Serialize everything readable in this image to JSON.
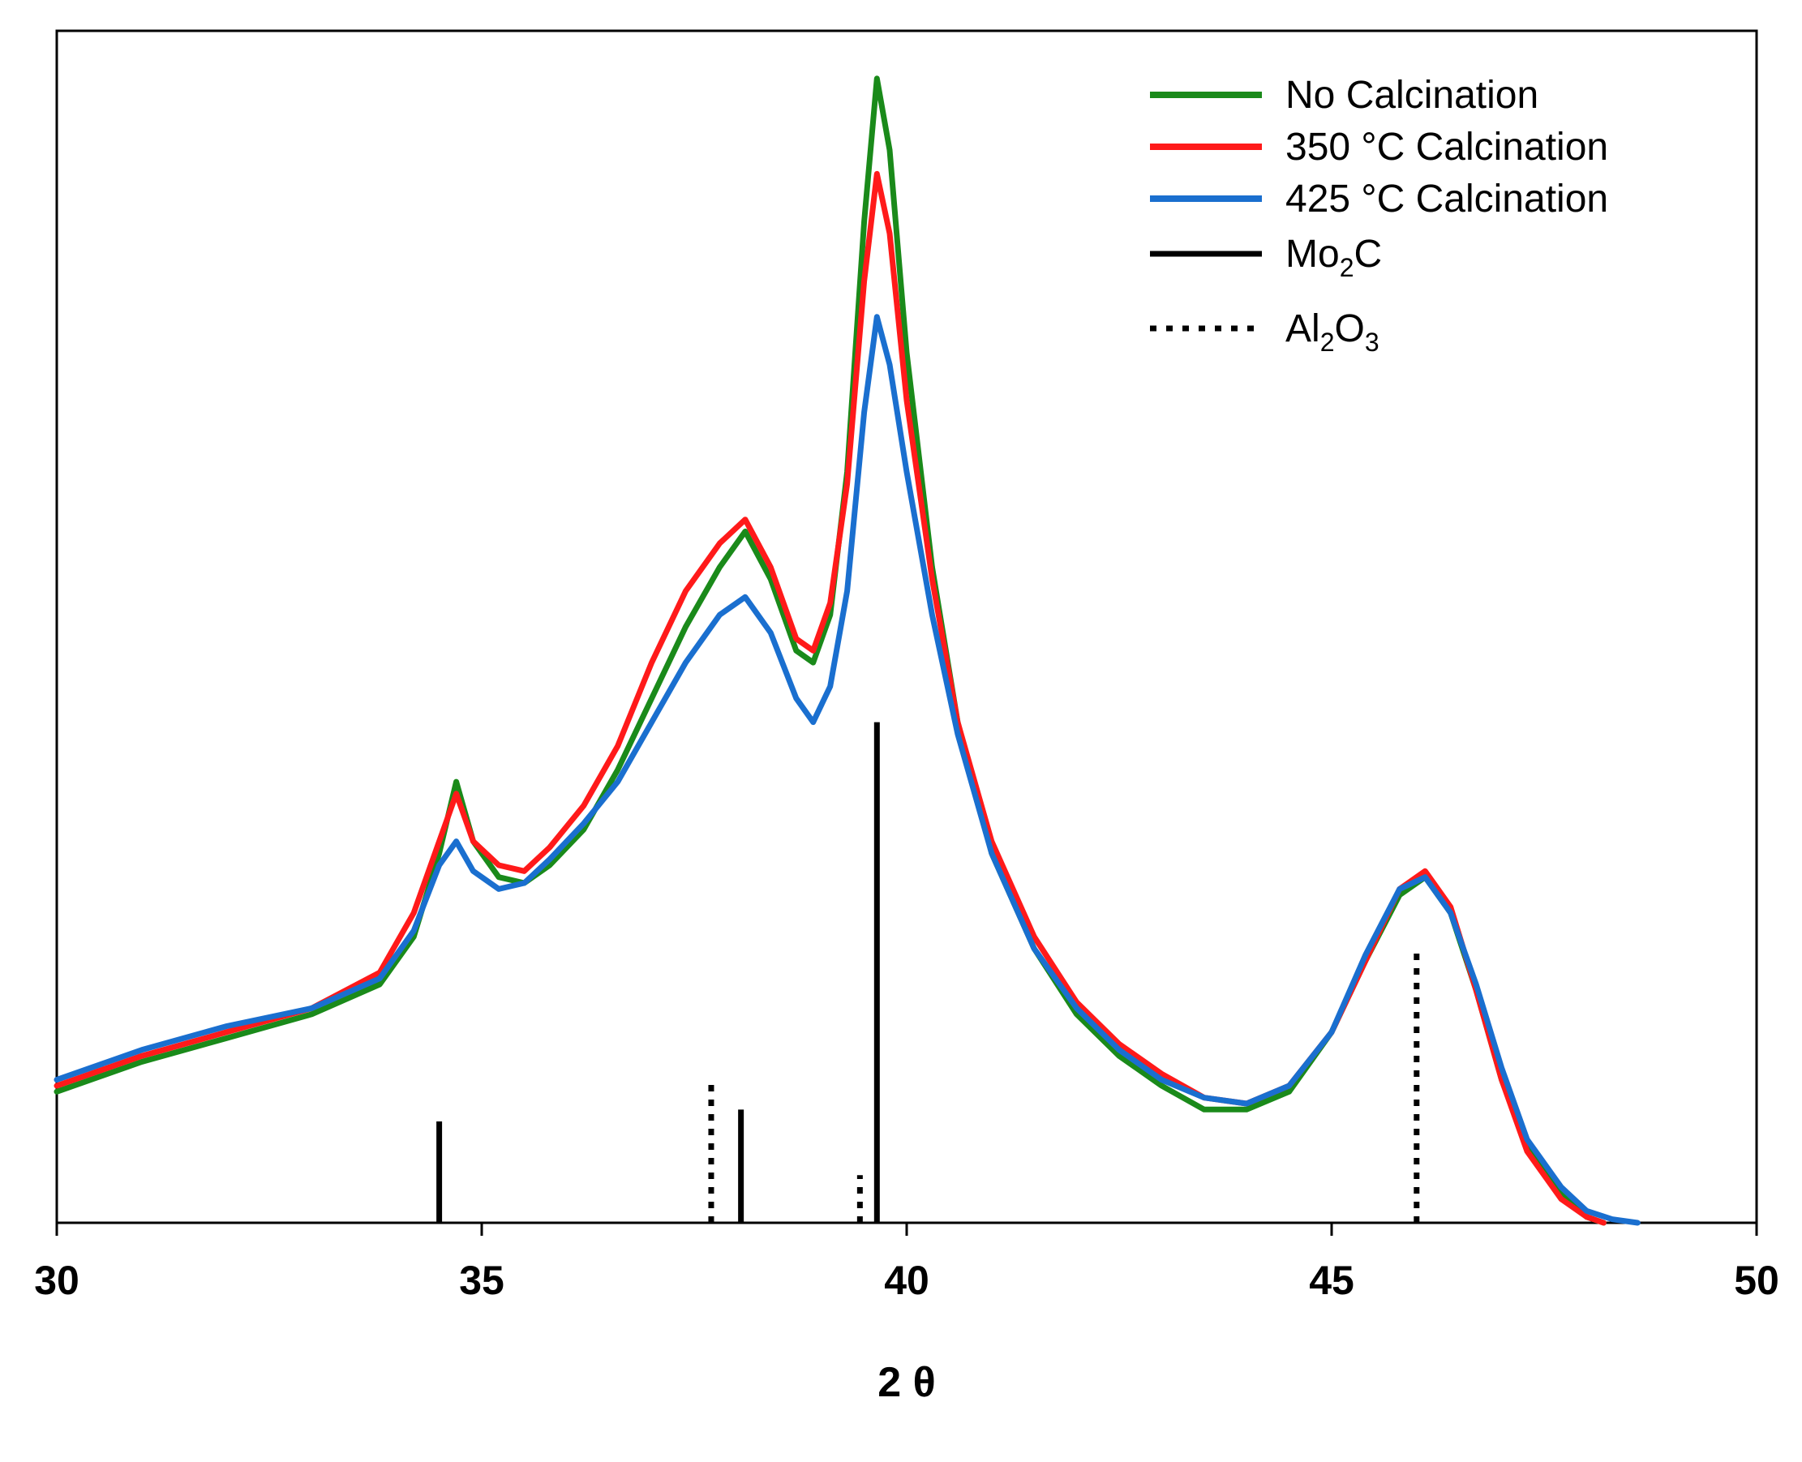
{
  "chart_data": {
    "type": "line",
    "title": "",
    "xlabel": "2 θ",
    "ylabel": "",
    "xlim": [
      30,
      50
    ],
    "ylim": [
      0,
      100
    ],
    "grid": false,
    "legend_position": "top-right",
    "x_ticks": [
      30,
      35,
      40,
      45,
      50
    ],
    "x_tick_labels": [
      "30",
      "35",
      "40",
      "45",
      "50"
    ],
    "series": [
      {
        "name": "No Calcination",
        "color": "#1a8a1a",
        "x": [
          30,
          31,
          32,
          33,
          33.8,
          34.2,
          34.5,
          34.7,
          34.9,
          35.2,
          35.5,
          35.8,
          36.2,
          36.6,
          37.0,
          37.4,
          37.8,
          38.1,
          38.4,
          38.7,
          38.9,
          39.1,
          39.3,
          39.5,
          39.65,
          39.8,
          40.0,
          40.3,
          40.6,
          41.0,
          41.5,
          42.0,
          42.5,
          43.0,
          43.5,
          44.0,
          44.5,
          45.0,
          45.4,
          45.8,
          46.1,
          46.4,
          46.7,
          47.0,
          47.3,
          47.7,
          48.0,
          48.2
        ],
        "y": [
          11,
          13.5,
          15.5,
          17.5,
          20,
          24,
          31,
          37,
          32,
          29,
          28.5,
          30,
          33,
          38,
          44,
          50,
          55,
          58,
          54,
          48,
          47,
          51,
          63,
          84,
          96,
          90,
          73,
          55,
          42,
          31,
          23,
          17.5,
          14,
          11.5,
          9.5,
          9.5,
          11,
          16,
          22,
          27.5,
          29,
          26,
          19.5,
          12,
          6.5,
          2.5,
          0.5,
          0
        ]
      },
      {
        "name": "350 °C Calcination",
        "color": "#ff1a1a",
        "x": [
          30,
          31,
          32,
          33,
          33.8,
          34.2,
          34.5,
          34.7,
          34.9,
          35.2,
          35.5,
          35.8,
          36.2,
          36.6,
          37.0,
          37.4,
          37.8,
          38.1,
          38.4,
          38.7,
          38.9,
          39.1,
          39.3,
          39.5,
          39.65,
          39.8,
          40.0,
          40.3,
          40.6,
          41.0,
          41.5,
          42.0,
          42.5,
          43.0,
          43.5,
          44.0,
          44.5,
          45.0,
          45.4,
          45.8,
          46.1,
          46.4,
          46.7,
          47.0,
          47.3,
          47.7,
          48.0,
          48.2
        ],
        "y": [
          11.5,
          14,
          16,
          18,
          21,
          26,
          32,
          36,
          32,
          30,
          29.5,
          31.5,
          35,
          40,
          47,
          53,
          57,
          59,
          55,
          49,
          48,
          52,
          62,
          79,
          88,
          83,
          69,
          54,
          42,
          32,
          24,
          18.5,
          15,
          12.5,
          10.5,
          10,
          11.5,
          16,
          22,
          28,
          29.5,
          26.5,
          19.5,
          12,
          6,
          2,
          0.5,
          0
        ]
      },
      {
        "name": "425 °C Calcination",
        "color": "#1a6fcf",
        "x": [
          30,
          31,
          32,
          33,
          33.8,
          34.2,
          34.5,
          34.7,
          34.9,
          35.2,
          35.5,
          35.8,
          36.2,
          36.6,
          37.0,
          37.4,
          37.8,
          38.1,
          38.4,
          38.7,
          38.9,
          39.1,
          39.3,
          39.5,
          39.65,
          39.8,
          40.0,
          40.3,
          40.6,
          41.0,
          41.5,
          42.0,
          42.5,
          43.0,
          43.5,
          44.0,
          44.5,
          45.0,
          45.4,
          45.8,
          46.1,
          46.4,
          46.7,
          47.0,
          47.3,
          47.7,
          48.0,
          48.3,
          48.6
        ],
        "y": [
          12,
          14.5,
          16.5,
          18,
          20.5,
          24.5,
          30,
          32,
          29.5,
          28,
          28.5,
          30.5,
          33.5,
          37,
          42,
          47,
          51,
          52.5,
          49.5,
          44,
          42,
          45,
          53,
          68,
          76,
          72,
          63,
          51,
          41,
          31,
          23,
          18,
          14.5,
          12,
          10.5,
          10,
          11.5,
          16,
          22.5,
          28,
          29,
          26,
          20,
          13,
          7,
          3,
          1,
          0.3,
          0
        ]
      }
    ],
    "reference_lines": [
      {
        "name": "Mo₂C",
        "style": "solid",
        "color": "#000000",
        "positions": [
          34.5,
          38.05,
          39.65
        ],
        "heights": [
          8.5,
          9.5,
          42
        ]
      },
      {
        "name": "Al₂O₃",
        "style": "dotted",
        "color": "#000000",
        "positions": [
          37.7,
          39.45,
          46.0
        ],
        "heights": [
          12,
          4,
          23
        ]
      }
    ],
    "legend": [
      {
        "label": "No Calcination",
        "color": "#1a8a1a",
        "style": "solid"
      },
      {
        "label": "350 °C Calcination",
        "color": "#ff1a1a",
        "style": "solid"
      },
      {
        "label": "425 °C Calcination",
        "color": "#1a6fcf",
        "style": "solid"
      },
      {
        "label_main": "Mo",
        "label_sub": "2",
        "label_tail": "C",
        "color": "#000000",
        "style": "solid"
      },
      {
        "label_main": "Al",
        "label_sub": "2",
        "label_mid": "O",
        "label_sub2": "3",
        "color": "#000000",
        "style": "dotted"
      }
    ]
  }
}
